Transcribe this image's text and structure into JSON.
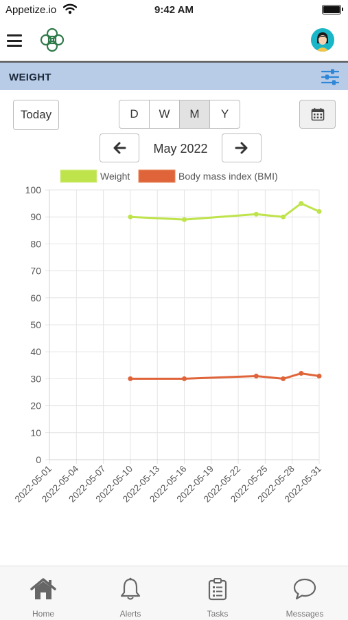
{
  "status_bar": {
    "carrier": "Appetize.io",
    "time": "9:42 AM"
  },
  "section": {
    "title": "WEIGHT"
  },
  "controls": {
    "today_label": "Today",
    "periods": [
      "D",
      "W",
      "M",
      "Y"
    ],
    "active_period": "M",
    "month_label": "May 2022"
  },
  "chart_data": {
    "type": "line",
    "x": [
      "2022-05-10",
      "2022-05-16",
      "2022-05-24",
      "2022-05-27",
      "2022-05-29",
      "2022-05-31"
    ],
    "x_ticks": [
      "2022-05-01",
      "2022-05-04",
      "2022-05-07",
      "2022-05-10",
      "2022-05-13",
      "2022-05-16",
      "2022-05-19",
      "2022-05-22",
      "2022-05-25",
      "2022-05-28",
      "2022-05-31"
    ],
    "series": [
      {
        "name": "Weight",
        "color": "#bfe34b",
        "values": [
          90,
          89,
          91,
          90,
          95,
          92
        ]
      },
      {
        "name": "Body mass index (BMI)",
        "color": "#e0643a",
        "values": [
          30,
          30,
          31,
          30,
          32,
          31
        ]
      }
    ],
    "ylim": [
      0,
      100
    ],
    "y_ticks": [
      0,
      10,
      20,
      30,
      40,
      50,
      60,
      70,
      80,
      90,
      100
    ],
    "grid": true,
    "legend_position": "top"
  },
  "tabs": [
    {
      "label": "Home",
      "icon": "home-icon"
    },
    {
      "label": "Alerts",
      "icon": "bell-icon"
    },
    {
      "label": "Tasks",
      "icon": "clipboard-icon"
    },
    {
      "label": "Messages",
      "icon": "chat-icon"
    }
  ]
}
